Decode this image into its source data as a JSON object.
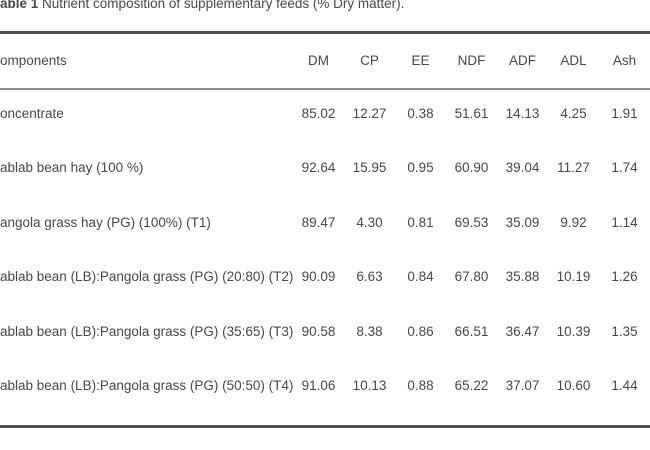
{
  "caption": {
    "label": "able 1",
    "text": " Nutrient composition of supplementary feeds (% Dry matter)."
  },
  "columns": [
    "omponents",
    "DM",
    "CP",
    "EE",
    "NDF",
    "ADF",
    "ADL",
    "Ash"
  ],
  "rows": [
    {
      "label": "oncentrate",
      "values": [
        "85.02",
        "12.27",
        "0.38",
        "51.61",
        "14.13",
        "4.25",
        "1.91"
      ]
    },
    {
      "label": "ablab bean hay (100 %)",
      "values": [
        "92.64",
        "15.95",
        "0.95",
        "60.90",
        "39.04",
        "11.27",
        "1.74"
      ]
    },
    {
      "label": "angola grass hay (PG) (100%) (T1)",
      "values": [
        "89.47",
        "4.30",
        "0.81",
        "69.53",
        "35.09",
        "9.92",
        "1.14"
      ]
    },
    {
      "label": "ablab bean (LB):Pangola grass (PG) (20:80) (T2)",
      "values": [
        "90.09",
        "6.63",
        "0.84",
        "67.80",
        "35.88",
        "10.19",
        "1.26"
      ]
    },
    {
      "label": "ablab bean (LB):Pangola grass (PG) (35:65) (T3)",
      "values": [
        "90.58",
        "8.38",
        "0.86",
        "66.51",
        "36.47",
        "10.39",
        "1.35"
      ]
    },
    {
      "label": "ablab bean (LB):Pangola grass (PG) (50:50) (T4)",
      "values": [
        "91.06",
        "10.13",
        "0.88",
        "65.22",
        "37.07",
        "10.60",
        "1.44"
      ]
    }
  ],
  "colors": {
    "rule_dark": "#4f4f4f",
    "rule_mid": "#8c8c8c",
    "text": "#474747",
    "background": "#ffffff"
  }
}
